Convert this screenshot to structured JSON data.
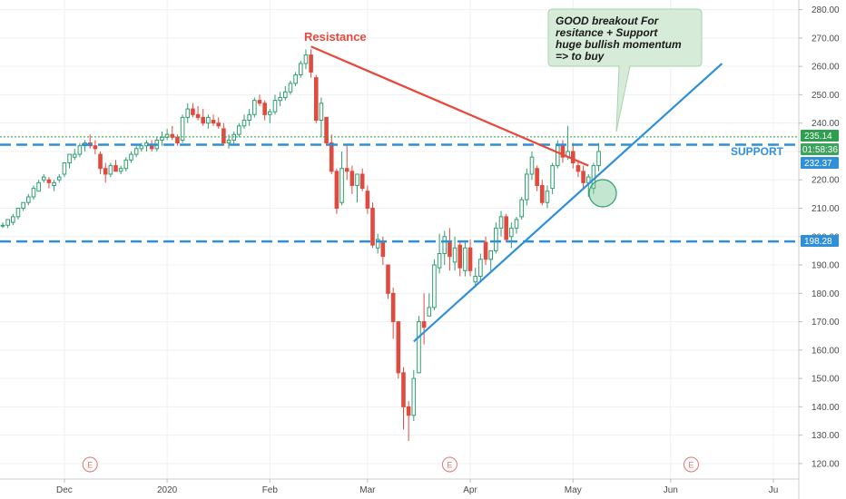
{
  "chart_data": {
    "type": "candlestick",
    "y_axis": {
      "ticks": [
        "280.00",
        "270.00",
        "260.00",
        "250.00",
        "240.00",
        "230.00",
        "220.00",
        "210.00",
        "200.00",
        "190.00",
        "180.00",
        "170.00",
        "160.00",
        "150.00",
        "140.00",
        "130.00",
        "120.00"
      ],
      "range": [
        117,
        285
      ],
      "position": "right"
    },
    "x_axis": {
      "ticks": [
        {
          "label": "Dec",
          "bar": 12
        },
        {
          "label": "2020",
          "bar": 32
        },
        {
          "label": "Feb",
          "bar": 52
        },
        {
          "label": "Mar",
          "bar": 71
        },
        {
          "label": "Apr",
          "bar": 91
        },
        {
          "label": "May",
          "bar": 111
        },
        {
          "label": "Jun",
          "bar": 130
        },
        {
          "label": "Ju",
          "bar": 150
        }
      ]
    },
    "grid": true,
    "colors": {
      "up": "#2e9e6f",
      "down": "#e04a3f",
      "support": "#2f8fd8",
      "resistance": "#e8473c",
      "last_price": "#2e9e4f",
      "event": "#e57373"
    },
    "candles": [
      [
        204,
        205,
        203,
        204
      ],
      [
        204,
        206,
        203,
        206
      ],
      [
        205,
        208,
        204,
        207
      ],
      [
        207,
        210,
        206,
        210
      ],
      [
        210,
        212,
        209,
        212
      ],
      [
        212,
        215,
        211,
        214
      ],
      [
        214,
        218,
        213,
        217
      ],
      [
        216,
        220,
        216,
        219
      ],
      [
        220,
        222,
        219,
        221
      ],
      [
        220,
        221,
        217,
        219
      ],
      [
        218,
        220,
        216,
        219
      ],
      [
        220,
        222,
        219,
        221
      ],
      [
        222,
        226,
        221,
        226
      ],
      [
        226,
        229,
        224,
        229
      ],
      [
        228,
        231,
        227,
        229
      ],
      [
        229,
        233,
        228,
        232
      ],
      [
        232,
        234,
        230,
        233
      ],
      [
        233,
        236,
        231,
        232
      ],
      [
        232,
        234,
        229,
        231
      ],
      [
        229,
        230,
        222,
        224
      ],
      [
        224,
        226,
        219,
        222
      ],
      [
        222,
        226,
        221,
        225
      ],
      [
        225,
        227,
        223,
        223
      ],
      [
        223,
        225,
        222,
        224
      ],
      [
        224,
        228,
        223,
        227
      ],
      [
        227,
        230,
        226,
        229
      ],
      [
        229,
        232,
        228,
        231
      ],
      [
        231,
        233,
        230,
        232
      ],
      [
        232,
        234,
        230,
        233
      ],
      [
        232,
        234,
        230,
        231
      ],
      [
        231,
        235,
        230,
        234
      ],
      [
        234,
        237,
        232,
        235
      ],
      [
        235,
        238,
        234,
        236
      ],
      [
        236,
        239,
        234,
        235
      ],
      [
        235,
        236,
        232,
        233
      ],
      [
        234,
        243,
        233,
        242
      ],
      [
        242,
        247,
        240,
        245
      ],
      [
        245,
        247,
        242,
        243
      ],
      [
        243,
        246,
        241,
        242
      ],
      [
        242,
        245,
        239,
        240
      ],
      [
        240,
        243,
        238,
        242
      ],
      [
        241,
        243,
        239,
        240
      ],
      [
        240,
        242,
        238,
        239
      ],
      [
        238,
        240,
        232,
        233
      ],
      [
        233,
        236,
        231,
        234
      ],
      [
        234,
        237,
        232,
        236
      ],
      [
        236,
        240,
        235,
        239
      ],
      [
        239,
        243,
        238,
        241
      ],
      [
        241,
        245,
        239,
        243
      ],
      [
        243,
        249,
        242,
        248
      ],
      [
        248,
        250,
        246,
        247
      ],
      [
        247,
        248,
        241,
        243
      ],
      [
        243,
        245,
        240,
        244
      ],
      [
        244,
        250,
        243,
        248
      ],
      [
        248,
        251,
        246,
        249
      ],
      [
        249,
        253,
        248,
        251
      ],
      [
        251,
        255,
        250,
        254
      ],
      [
        254,
        258,
        253,
        257
      ],
      [
        257,
        262,
        256,
        261
      ],
      [
        261,
        266,
        259,
        264
      ],
      [
        264,
        266,
        256,
        258
      ],
      [
        256,
        257,
        240,
        241
      ],
      [
        241,
        249,
        235,
        247
      ],
      [
        242,
        242,
        232,
        233
      ],
      [
        233,
        236,
        222,
        223
      ],
      [
        223,
        224,
        208,
        210
      ],
      [
        212,
        230,
        211,
        224
      ],
      [
        224,
        232,
        220,
        223
      ],
      [
        223,
        225,
        215,
        218
      ],
      [
        218,
        222,
        212,
        222
      ],
      [
        222,
        224,
        216,
        217
      ],
      [
        216,
        218,
        208,
        210
      ],
      [
        210,
        212,
        196,
        197
      ],
      [
        196,
        201,
        194,
        199
      ],
      [
        198,
        200,
        190,
        193
      ],
      [
        190,
        190,
        178,
        180
      ],
      [
        180,
        182,
        164,
        170
      ],
      [
        170,
        170,
        150,
        152
      ],
      [
        152,
        154,
        132,
        140
      ],
      [
        140,
        142,
        128,
        137
      ],
      [
        137,
        153,
        135,
        150
      ],
      [
        152,
        172,
        152,
        170
      ],
      [
        170,
        180,
        162,
        168
      ],
      [
        172,
        180,
        172,
        175
      ],
      [
        175,
        192,
        174,
        190
      ],
      [
        189,
        201,
        187,
        194
      ],
      [
        194,
        202,
        190,
        200
      ],
      [
        198,
        203,
        188,
        193
      ],
      [
        191,
        200,
        188,
        196
      ],
      [
        197,
        198,
        186,
        189
      ],
      [
        188,
        198,
        186,
        196
      ],
      [
        196,
        199,
        186,
        188
      ],
      [
        184,
        189,
        182,
        186
      ],
      [
        186,
        194,
        184,
        192
      ],
      [
        198,
        200,
        190,
        192
      ],
      [
        192,
        195,
        188,
        195
      ],
      [
        195,
        205,
        194,
        203
      ],
      [
        203,
        209,
        200,
        207
      ],
      [
        207,
        208,
        198,
        199
      ],
      [
        200,
        205,
        196,
        203
      ],
      [
        203,
        207,
        201,
        206
      ],
      [
        207,
        214,
        206,
        213
      ],
      [
        213,
        224,
        211,
        222
      ],
      [
        222,
        230,
        220,
        228
      ],
      [
        224,
        225,
        216,
        218
      ],
      [
        218,
        220,
        211,
        212
      ],
      [
        212,
        218,
        210,
        216
      ],
      [
        217,
        226,
        215,
        225
      ],
      [
        225,
        234,
        224,
        232
      ],
      [
        232,
        234,
        226,
        228
      ],
      [
        228,
        239,
        227,
        230
      ],
      [
        230,
        233,
        224,
        226
      ],
      [
        225,
        227,
        221,
        223
      ],
      [
        223,
        225,
        217,
        219
      ],
      [
        219,
        222,
        214,
        221
      ],
      [
        217,
        226,
        215,
        225
      ],
      [
        225,
        233,
        223,
        230
      ]
    ],
    "lines": {
      "support_upper": 232.37,
      "support_lower": 198.28,
      "last_price": 235.14
    },
    "resistance_trend": {
      "from": {
        "bar": 60,
        "price": 267
      },
      "to": {
        "bar": 114,
        "price": 225
      }
    },
    "support_trend": {
      "from": {
        "bar": 80,
        "price": 163
      },
      "to": {
        "bar": 140,
        "price": 261
      }
    },
    "events": [
      {
        "bar": 17
      },
      {
        "bar": 87
      },
      {
        "bar": 134
      }
    ]
  },
  "labels": {
    "resistance": "Resistance",
    "support": "SUPPORT",
    "callout": [
      "GOOD breakout For",
      "resitance + Support",
      "huge bullish momentum",
      "=>  to buy"
    ],
    "event_letter": "E",
    "tag_last_price": "235.14",
    "tag_countdown": "01:58:36",
    "tag_support_upper": "232.37",
    "tag_support_lower": "198.28"
  }
}
